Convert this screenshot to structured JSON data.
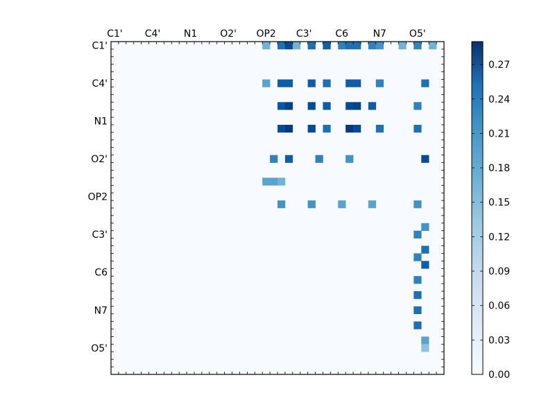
{
  "chart_data": {
    "type": "heatmap",
    "title": "",
    "xlabel": "",
    "ylabel": "",
    "shape": [
      44,
      44
    ],
    "upper_triangle_only": true,
    "tick_labels": [
      "C1'",
      "C4'",
      "N1",
      "O2'",
      "OP2",
      "C3'",
      "C6",
      "N7",
      "O5'"
    ],
    "tick_label_rows": [
      0,
      5,
      10,
      15,
      20,
      25,
      30,
      35,
      40
    ],
    "colorbar": {
      "colormap": "Blues",
      "vmin": 0.0,
      "vmax": 0.29,
      "ticks": [
        "0.00",
        "0.03",
        "0.06",
        "0.09",
        "0.12",
        "0.15",
        "0.18",
        "0.21",
        "0.24",
        "0.27"
      ]
    },
    "colors": {
      "low": "#f7fbff",
      "mid": "#6baed6",
      "high": "#08306b"
    },
    "note_values": "approximate cell values read from the color scale; upper triangle only",
    "cells": [
      [
        0,
        20,
        0.14
      ],
      [
        0,
        22,
        0.22
      ],
      [
        0,
        23,
        0.26
      ],
      [
        0,
        24,
        0.14
      ],
      [
        0,
        26,
        0.22
      ],
      [
        0,
        28,
        0.24
      ],
      [
        0,
        30,
        0.2
      ],
      [
        0,
        31,
        0.22
      ],
      [
        0,
        32,
        0.22
      ],
      [
        0,
        34,
        0.2
      ],
      [
        0,
        35,
        0.18
      ],
      [
        0,
        38,
        0.14
      ],
      [
        0,
        40,
        0.2
      ],
      [
        0,
        42,
        0.14
      ],
      [
        5,
        20,
        0.16
      ],
      [
        5,
        22,
        0.24
      ],
      [
        5,
        23,
        0.24
      ],
      [
        5,
        26,
        0.24
      ],
      [
        5,
        28,
        0.22
      ],
      [
        5,
        31,
        0.24
      ],
      [
        5,
        32,
        0.24
      ],
      [
        5,
        35,
        0.2
      ],
      [
        5,
        41,
        0.22
      ],
      [
        8,
        22,
        0.25
      ],
      [
        8,
        23,
        0.27
      ],
      [
        8,
        26,
        0.26
      ],
      [
        8,
        28,
        0.24
      ],
      [
        8,
        31,
        0.26
      ],
      [
        8,
        32,
        0.27
      ],
      [
        8,
        34,
        0.24
      ],
      [
        8,
        40,
        0.2
      ],
      [
        11,
        22,
        0.26
      ],
      [
        11,
        23,
        0.28
      ],
      [
        11,
        26,
        0.26
      ],
      [
        11,
        28,
        0.22
      ],
      [
        11,
        31,
        0.28
      ],
      [
        11,
        32,
        0.26
      ],
      [
        11,
        35,
        0.22
      ],
      [
        11,
        40,
        0.22
      ],
      [
        15,
        21,
        0.2
      ],
      [
        15,
        23,
        0.24
      ],
      [
        15,
        27,
        0.2
      ],
      [
        15,
        31,
        0.18
      ],
      [
        15,
        41,
        0.26
      ],
      [
        18,
        20,
        0.16
      ],
      [
        18,
        21,
        0.16
      ],
      [
        18,
        22,
        0.14
      ],
      [
        21,
        22,
        0.18
      ],
      [
        21,
        26,
        0.18
      ],
      [
        21,
        30,
        0.16
      ],
      [
        21,
        34,
        0.16
      ],
      [
        21,
        40,
        0.18
      ],
      [
        24,
        41,
        0.18
      ],
      [
        25,
        40,
        0.2
      ],
      [
        27,
        41,
        0.22
      ],
      [
        28,
        40,
        0.2
      ],
      [
        29,
        41,
        0.24
      ],
      [
        31,
        40,
        0.2
      ],
      [
        33,
        40,
        0.22
      ],
      [
        35,
        40,
        0.22
      ],
      [
        37,
        40,
        0.22
      ],
      [
        39,
        41,
        0.16
      ],
      [
        40,
        41,
        0.12
      ]
    ]
  }
}
